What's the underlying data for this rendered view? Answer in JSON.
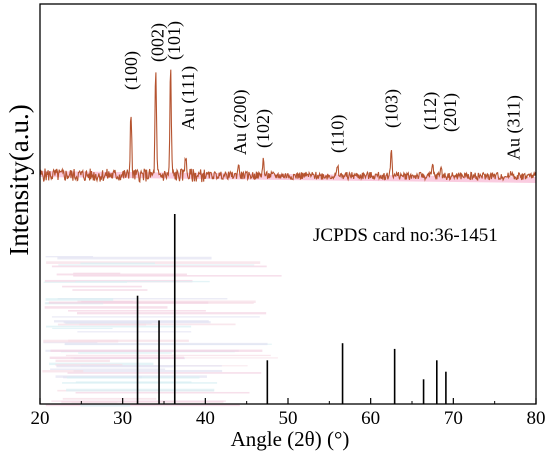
{
  "chart_data": {
    "type": "line",
    "xlabel": "Angle (2θ) (°)",
    "ylabel": "Intensity(a.u.)",
    "xlim": [
      20,
      80
    ],
    "x_ticks": [
      20,
      30,
      40,
      50,
      60,
      70,
      80
    ],
    "grid": false,
    "card_label": "JCPDS card no:36-1451",
    "colors": {
      "pattern": "#b5532f",
      "pattern_band": "#f6a3c6",
      "reference": "#000000",
      "axes": "#000000"
    },
    "xrd_peaks": [
      {
        "x": 31.0,
        "intensity": 0.55
      },
      {
        "x": 34.0,
        "intensity": 0.92
      },
      {
        "x": 35.8,
        "intensity": 0.95
      },
      {
        "x": 37.6,
        "intensity": 0.2
      },
      {
        "x": 44.0,
        "intensity": 0.1
      },
      {
        "x": 47.0,
        "intensity": 0.15
      },
      {
        "x": 56.0,
        "intensity": 0.08
      },
      {
        "x": 62.5,
        "intensity": 0.24
      },
      {
        "x": 67.5,
        "intensity": 0.09
      },
      {
        "x": 68.5,
        "intensity": 0.08
      },
      {
        "x": 77.0,
        "intensity": 0.05
      }
    ],
    "peak_labels": [
      {
        "x": 31.0,
        "text": "(100)"
      },
      {
        "x": 34.2,
        "text": "(002)"
      },
      {
        "x": 36.2,
        "text": "(101)"
      },
      {
        "x": 37.9,
        "text": "Au (111)"
      },
      {
        "x": 44.2,
        "text": "Au (200)"
      },
      {
        "x": 47.0,
        "text": "(102)"
      },
      {
        "x": 56.0,
        "text": "(110)"
      },
      {
        "x": 62.5,
        "text": "(103)"
      },
      {
        "x": 67.2,
        "text": "(112)"
      },
      {
        "x": 69.6,
        "text": "(201)"
      },
      {
        "x": 77.3,
        "text": "Au (311)"
      }
    ],
    "reference_lines": [
      {
        "x": 31.8,
        "intensity": 0.57
      },
      {
        "x": 34.4,
        "intensity": 0.44
      },
      {
        "x": 36.3,
        "intensity": 1.0
      },
      {
        "x": 47.5,
        "intensity": 0.23
      },
      {
        "x": 56.6,
        "intensity": 0.32
      },
      {
        "x": 62.9,
        "intensity": 0.29
      },
      {
        "x": 66.4,
        "intensity": 0.13
      },
      {
        "x": 68.0,
        "intensity": 0.23
      },
      {
        "x": 69.1,
        "intensity": 0.17
      }
    ]
  }
}
